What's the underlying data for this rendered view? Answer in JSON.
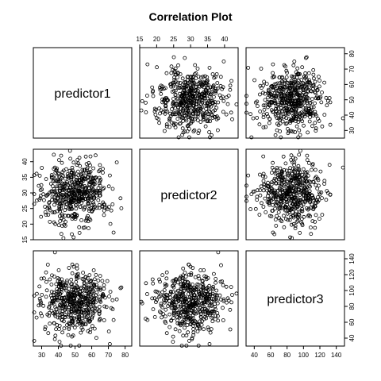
{
  "chart_data": {
    "type": "scatter",
    "title": "Correlation Plot",
    "variables": [
      "predictor1",
      "predictor2",
      "predictor3"
    ],
    "axes": {
      "predictor1": {
        "range": [
          25,
          84
        ],
        "ticks": [
          30,
          40,
          50,
          60,
          70,
          80
        ],
        "mean": 50,
        "sd": 10
      },
      "predictor2": {
        "range": [
          15,
          44
        ],
        "ticks": [
          15,
          20,
          25,
          30,
          35,
          40
        ],
        "mean": 30,
        "sd": 5
      },
      "predictor3": {
        "range": [
          30,
          150
        ],
        "ticks": [
          40,
          60,
          80,
          100,
          120,
          140
        ],
        "mean": 85,
        "sd": 20
      }
    },
    "n_points": 500,
    "correlation": "none (independent)",
    "grid": false,
    "legend": "none"
  }
}
